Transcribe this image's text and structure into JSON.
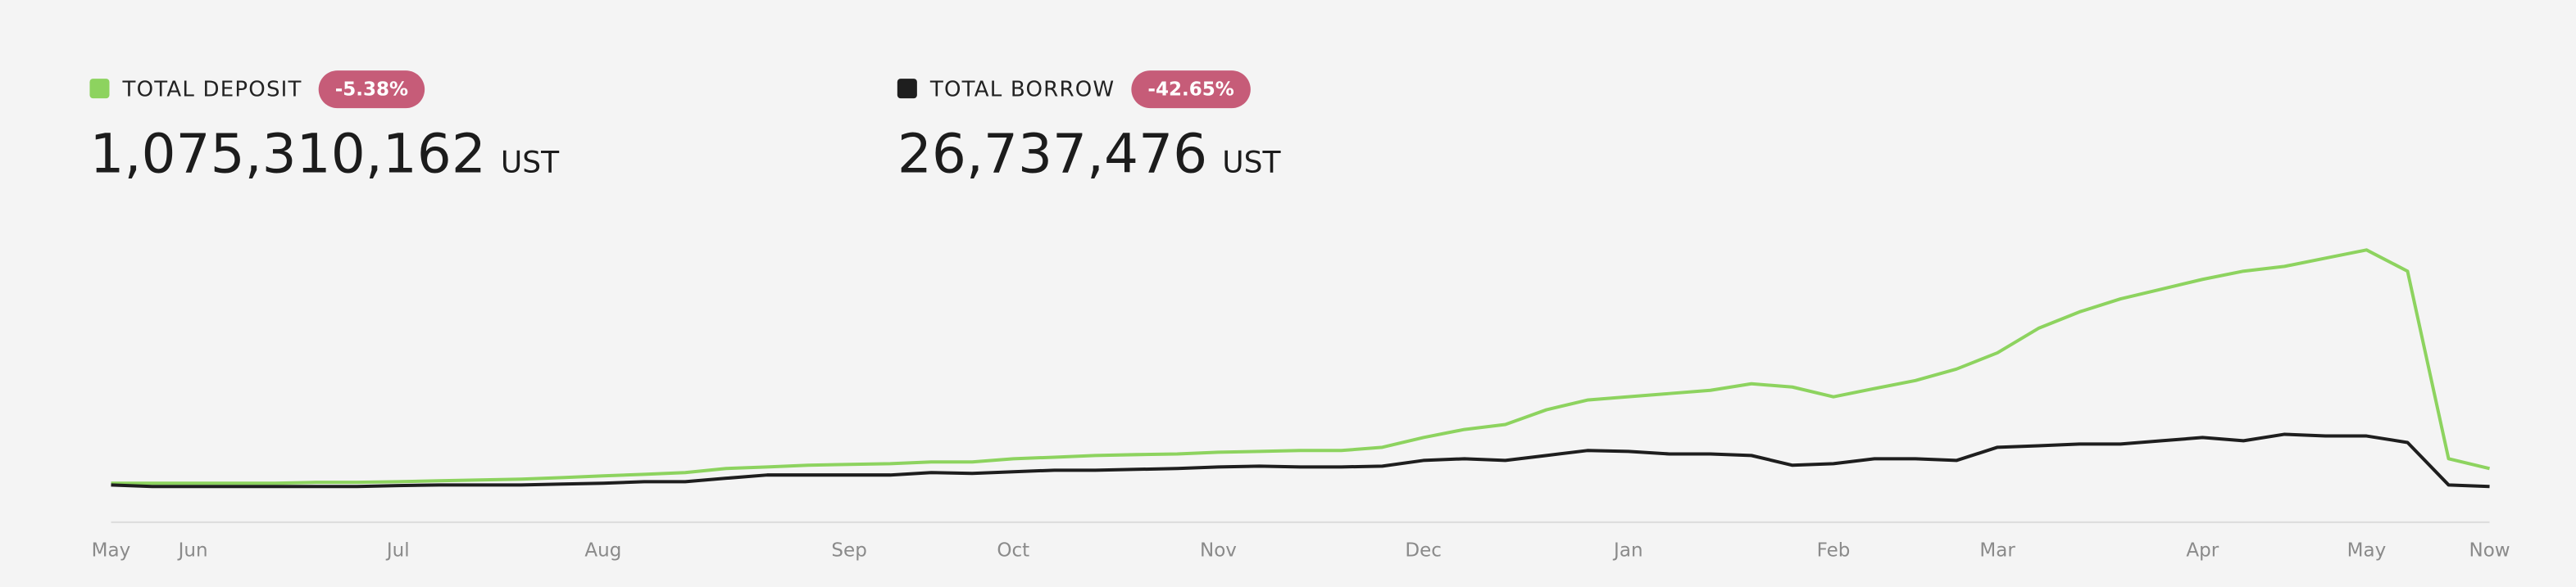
{
  "chart_data": {
    "type": "line",
    "categories": [
      "May",
      null,
      "Jun",
      null,
      null,
      null,
      null,
      "Jul",
      null,
      null,
      null,
      null,
      "Aug",
      null,
      null,
      null,
      null,
      null,
      "Sep",
      null,
      null,
      null,
      "Oct",
      null,
      null,
      null,
      null,
      "Nov",
      null,
      null,
      null,
      null,
      "Dec",
      null,
      null,
      null,
      null,
      "Jan",
      null,
      null,
      null,
      null,
      "Feb",
      null,
      null,
      null,
      "Mar",
      null,
      null,
      null,
      null,
      "Apr",
      null,
      null,
      null,
      "May",
      null,
      null,
      "Now"
    ],
    "series": [
      {
        "name": "TOTAL DEPOSIT",
        "color": "#8dd35f",
        "total": "1,075,310,162",
        "unit": "UST",
        "change": "-5.38%",
        "values": [
          220000000,
          220000000,
          220000000,
          220000000,
          220000000,
          270000000,
          270000000,
          310000000,
          360000000,
          410000000,
          460000000,
          550000000,
          650000000,
          740000000,
          840000000,
          1080000000,
          1170000000,
          1270000000,
          1320000000,
          1360000000,
          1460000000,
          1460000000,
          1650000000,
          1740000000,
          1840000000,
          1890000000,
          1930000000,
          2030000000,
          2080000000,
          2130000000,
          2130000000,
          2320000000,
          2890000000,
          3360000000,
          3650000000,
          4510000000,
          5080000000,
          5270000000,
          5460000000,
          5650000000,
          6030000000,
          5840000000,
          5270000000,
          5750000000,
          6220000000,
          6890000000,
          7840000000,
          9270000000,
          10230000000,
          10990000000,
          11560000000,
          12130000000,
          12610000000,
          12890000000,
          13370000000,
          13850000000,
          12610000000,
          1650000000,
          1075310162
        ]
      },
      {
        "name": "TOTAL BORROW",
        "color": "#1e1e1e",
        "total": "26,737,476",
        "unit": "UST",
        "change": "-42.65%",
        "values": [
          120000000,
          30000000,
          30000000,
          30000000,
          30000000,
          30000000,
          30000000,
          80000000,
          120000000,
          120000000,
          120000000,
          170000000,
          220000000,
          310000000,
          310000000,
          510000000,
          700000000,
          700000000,
          700000000,
          700000000,
          840000000,
          790000000,
          890000000,
          980000000,
          980000000,
          1030000000,
          1080000000,
          1170000000,
          1220000000,
          1170000000,
          1170000000,
          1220000000,
          1550000000,
          1650000000,
          1550000000,
          1840000000,
          2130000000,
          2080000000,
          1930000000,
          1930000000,
          1840000000,
          1270000000,
          1360000000,
          1650000000,
          1650000000,
          1550000000,
          2320000000,
          2410000000,
          2510000000,
          2510000000,
          2700000000,
          2890000000,
          2700000000,
          3080000000,
          2980000000,
          2980000000,
          2600000000,
          120000000,
          26737476
        ]
      }
    ],
    "ylim": [
      0,
      16000000000
    ],
    "badge_color": "#c65c78"
  }
}
